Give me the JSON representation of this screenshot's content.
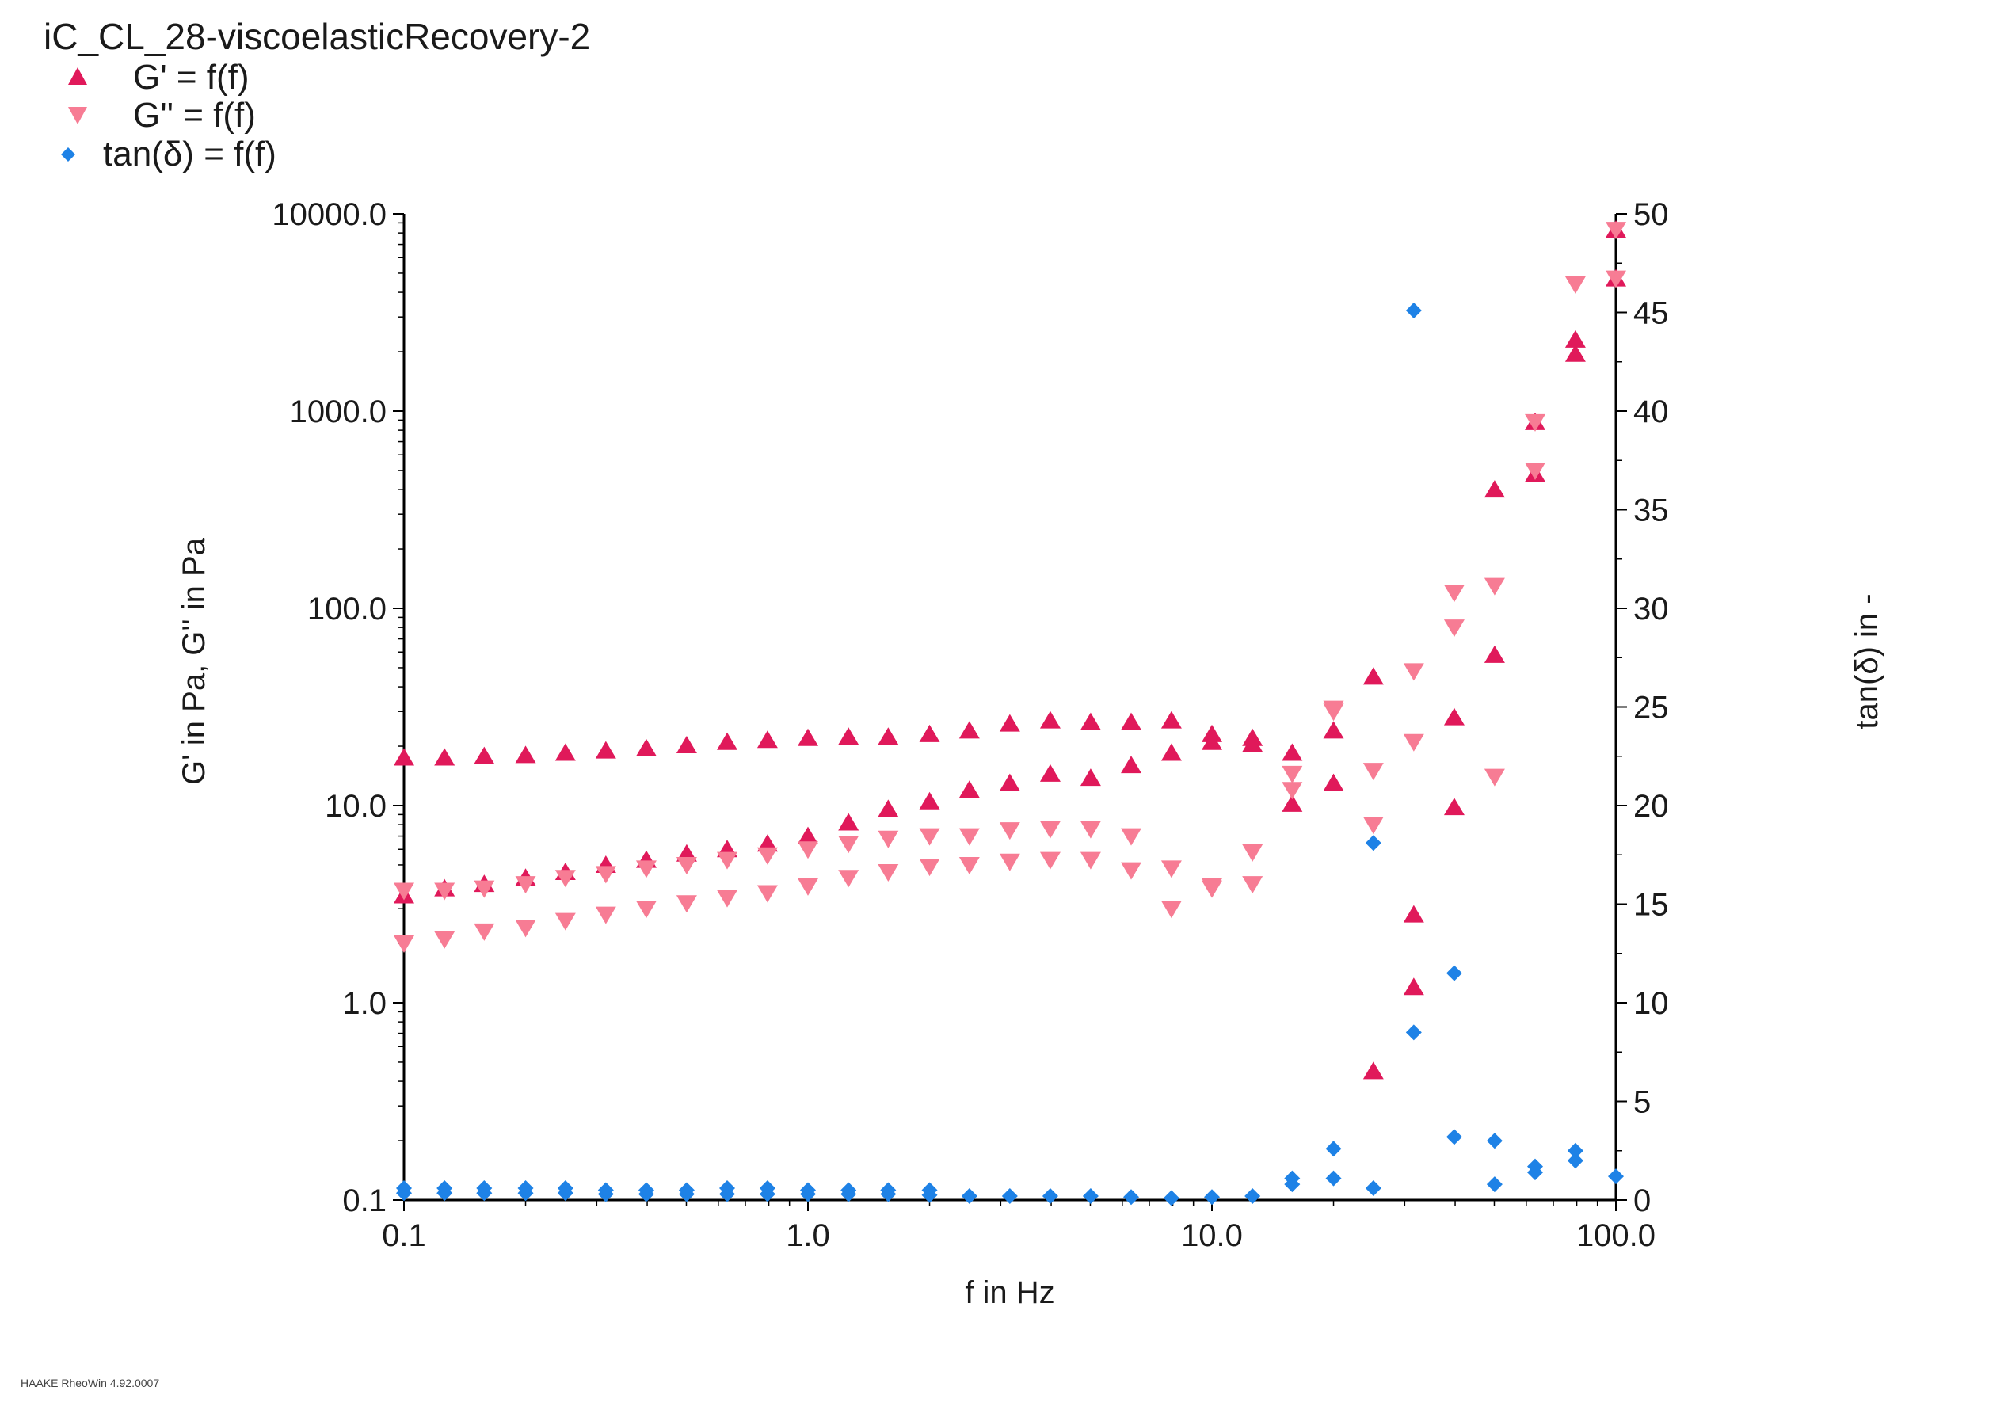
{
  "chart_data": {
    "type": "scatter",
    "title": "iC_CL_28-viscoelasticRecovery-2",
    "xlabel": "f in Hz",
    "ylabel": "G' in Pa, G'' in Pa",
    "y2label": "tan(δ) in -",
    "xscale": "log",
    "yscale": "log",
    "xlim": [
      0.1,
      100.0
    ],
    "ylim": [
      0.1,
      10000.0
    ],
    "y2lim": [
      0,
      50
    ],
    "xticks": [
      "0.1",
      "1.0",
      "10.0",
      "100.0"
    ],
    "yticks": [
      "0.1",
      "1.0",
      "10.0",
      "100.0",
      "1000.0",
      "10000.0"
    ],
    "y2ticks": [
      "0",
      "5",
      "10",
      "15",
      "20",
      "25",
      "30",
      "35",
      "40",
      "45",
      "50"
    ],
    "grid": false,
    "legend_position": "top-left",
    "series": [
      {
        "name": "G' = f(f)",
        "marker": "triangle-up",
        "color": "#e0195a",
        "axis": "left",
        "points": [
          [
            0.1,
            17.5
          ],
          [
            0.126,
            17.5
          ],
          [
            0.158,
            17.8
          ],
          [
            0.2,
            18.0
          ],
          [
            0.251,
            18.5
          ],
          [
            0.316,
            19.0
          ],
          [
            0.398,
            19.5
          ],
          [
            0.501,
            20.2
          ],
          [
            0.631,
            21.0
          ],
          [
            0.794,
            21.5
          ],
          [
            1.0,
            22.0
          ],
          [
            1.26,
            22.3
          ],
          [
            1.58,
            22.3
          ],
          [
            2.0,
            23.0
          ],
          [
            2.51,
            24.0
          ],
          [
            3.16,
            26.0
          ],
          [
            3.98,
            27.0
          ],
          [
            5.01,
            26.5
          ],
          [
            6.31,
            26.5
          ],
          [
            7.94,
            27.0
          ],
          [
            10.0,
            23.0
          ],
          [
            12.6,
            22.0
          ],
          [
            15.8,
            18.5
          ],
          [
            20.0,
            24.0
          ],
          [
            25.1,
            45.0
          ],
          [
            31.6,
            2.8
          ],
          [
            39.8,
            28.0
          ],
          [
            50.1,
            400.0
          ],
          [
            63.1,
            880.0
          ],
          [
            79.4,
            2300.0
          ],
          [
            100.0,
            8300.0
          ],
          [
            0.1,
            3.5
          ],
          [
            0.126,
            3.8
          ],
          [
            0.158,
            4.0
          ],
          [
            0.2,
            4.3
          ],
          [
            0.251,
            4.6
          ],
          [
            0.316,
            5.0
          ],
          [
            0.398,
            5.3
          ],
          [
            0.501,
            5.7
          ],
          [
            0.631,
            6.0
          ],
          [
            0.794,
            6.4
          ],
          [
            1.0,
            7.0
          ],
          [
            1.26,
            8.2
          ],
          [
            1.58,
            9.6
          ],
          [
            2.0,
            10.5
          ],
          [
            2.51,
            12.0
          ],
          [
            3.16,
            13.0
          ],
          [
            3.98,
            14.5
          ],
          [
            5.01,
            13.8
          ],
          [
            6.31,
            16.0
          ],
          [
            7.94,
            18.5
          ],
          [
            10.0,
            21.0
          ],
          [
            12.6,
            20.5
          ],
          [
            15.8,
            10.2
          ],
          [
            20.0,
            13.0
          ],
          [
            25.1,
            0.45
          ],
          [
            31.6,
            1.2
          ],
          [
            39.8,
            9.8
          ],
          [
            50.1,
            58.0
          ],
          [
            63.1,
            480.0
          ],
          [
            79.4,
            1950.0
          ],
          [
            100.0,
            4700.0
          ]
        ]
      },
      {
        "name": "G'' = f(f)",
        "marker": "triangle-down",
        "color": "#f77c94",
        "axis": "left",
        "points": [
          [
            0.1,
            3.7
          ],
          [
            0.126,
            3.7
          ],
          [
            0.158,
            3.8
          ],
          [
            0.2,
            4.0
          ],
          [
            0.251,
            4.3
          ],
          [
            0.316,
            4.5
          ],
          [
            0.398,
            4.8
          ],
          [
            0.501,
            5.0
          ],
          [
            0.631,
            5.3
          ],
          [
            0.794,
            5.6
          ],
          [
            1.0,
            6.0
          ],
          [
            1.26,
            6.4
          ],
          [
            1.58,
            6.8
          ],
          [
            2.0,
            7.0
          ],
          [
            2.51,
            7.0
          ],
          [
            3.16,
            7.5
          ],
          [
            3.98,
            7.6
          ],
          [
            5.01,
            7.6
          ],
          [
            6.31,
            7.0
          ],
          [
            7.94,
            4.8
          ],
          [
            10.0,
            3.8
          ],
          [
            12.6,
            5.8
          ],
          [
            15.8,
            14.5
          ],
          [
            20.0,
            30.0
          ],
          [
            25.1,
            15.0
          ],
          [
            31.6,
            48.0
          ],
          [
            39.8,
            120.0
          ],
          [
            50.1,
            130.0
          ],
          [
            63.1,
            880.0
          ],
          [
            79.4,
            4400.0
          ],
          [
            100.0,
            4700.0
          ],
          [
            0.1,
            2.0
          ],
          [
            0.126,
            2.1
          ],
          [
            0.158,
            2.3
          ],
          [
            0.2,
            2.4
          ],
          [
            0.251,
            2.6
          ],
          [
            0.316,
            2.8
          ],
          [
            0.398,
            3.0
          ],
          [
            0.501,
            3.2
          ],
          [
            0.631,
            3.4
          ],
          [
            0.794,
            3.6
          ],
          [
            1.0,
            3.9
          ],
          [
            1.26,
            4.3
          ],
          [
            1.58,
            4.6
          ],
          [
            2.0,
            4.9
          ],
          [
            2.51,
            5.0
          ],
          [
            3.16,
            5.2
          ],
          [
            3.98,
            5.3
          ],
          [
            5.01,
            5.3
          ],
          [
            6.31,
            4.7
          ],
          [
            7.94,
            3.0
          ],
          [
            10.0,
            3.9
          ],
          [
            12.6,
            4.0
          ],
          [
            15.8,
            12.0
          ],
          [
            20.0,
            31.0
          ],
          [
            25.1,
            8.0
          ],
          [
            31.6,
            21.0
          ],
          [
            39.8,
            80.0
          ],
          [
            50.1,
            14.0
          ],
          [
            63.1,
            500.0
          ],
          [
            79.4,
            4400.0
          ],
          [
            100.0,
            8300.0
          ]
        ]
      },
      {
        "name": "tan(δ) = f(f)",
        "marker": "diamond",
        "color": "#1e82e6",
        "axis": "right",
        "points": [
          [
            0.1,
            0.35
          ],
          [
            0.126,
            0.35
          ],
          [
            0.158,
            0.35
          ],
          [
            0.2,
            0.35
          ],
          [
            0.251,
            0.35
          ],
          [
            0.316,
            0.3
          ],
          [
            0.398,
            0.3
          ],
          [
            0.501,
            0.3
          ],
          [
            0.631,
            0.3
          ],
          [
            0.794,
            0.3
          ],
          [
            1.0,
            0.3
          ],
          [
            1.26,
            0.3
          ],
          [
            1.58,
            0.3
          ],
          [
            2.0,
            0.25
          ],
          [
            2.51,
            0.2
          ],
          [
            3.16,
            0.2
          ],
          [
            3.98,
            0.2
          ],
          [
            5.01,
            0.2
          ],
          [
            6.31,
            0.15
          ],
          [
            7.94,
            0.1
          ],
          [
            10.0,
            0.15
          ],
          [
            12.6,
            0.2
          ],
          [
            15.8,
            0.8
          ],
          [
            20.0,
            2.6
          ],
          [
            25.1,
            18.1
          ],
          [
            31.6,
            45.1
          ],
          [
            39.8,
            11.5
          ],
          [
            50.1,
            3.0
          ],
          [
            63.1,
            1.7
          ],
          [
            79.4,
            2.5
          ],
          [
            100.0,
            1.2
          ],
          [
            0.1,
            0.6
          ],
          [
            0.126,
            0.6
          ],
          [
            0.158,
            0.6
          ],
          [
            0.2,
            0.6
          ],
          [
            0.251,
            0.6
          ],
          [
            0.316,
            0.5
          ],
          [
            0.398,
            0.5
          ],
          [
            0.501,
            0.5
          ],
          [
            0.631,
            0.6
          ],
          [
            0.794,
            0.6
          ],
          [
            1.0,
            0.5
          ],
          [
            1.26,
            0.5
          ],
          [
            1.58,
            0.5
          ],
          [
            2.0,
            0.5
          ],
          [
            15.8,
            1.1
          ],
          [
            20.0,
            1.1
          ],
          [
            25.1,
            0.6
          ],
          [
            31.6,
            8.5
          ],
          [
            39.8,
            3.2
          ],
          [
            50.1,
            0.8
          ],
          [
            63.1,
            1.4
          ],
          [
            79.4,
            2.0
          ]
        ]
      }
    ]
  },
  "footer": {
    "software": "HAAKE RheoWin 4.92.0007"
  }
}
